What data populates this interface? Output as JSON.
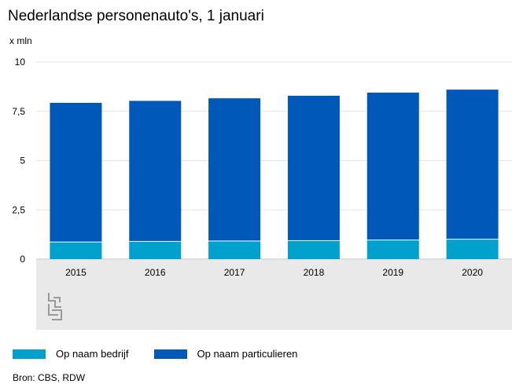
{
  "title": "Nederlandse personenauto's, 1 januari",
  "unit": "x mln",
  "source": "Bron: CBS, RDW",
  "colors": {
    "bedrijf": "#00a1cd",
    "particulieren": "#0058b8",
    "grid": "#e6e6e6",
    "band": "#e9e9e9"
  },
  "icons": {
    "logo": "cbs-logo-icon"
  },
  "chart_data": {
    "type": "bar",
    "stacked": true,
    "categories": [
      "2015",
      "2016",
      "2017",
      "2018",
      "2019",
      "2020"
    ],
    "series": [
      {
        "name": "Op naam bedrijf",
        "values": [
          0.85,
          0.88,
          0.9,
          0.92,
          0.95,
          0.99
        ]
      },
      {
        "name": "Op naam particulieren",
        "values": [
          7.08,
          7.15,
          7.26,
          7.37,
          7.5,
          7.61
        ]
      }
    ],
    "ylim": [
      0,
      10
    ],
    "yticks": [
      0,
      2.5,
      5,
      7.5,
      10
    ],
    "ytick_labels": [
      "0",
      "2,5",
      "5",
      "7,5",
      "10"
    ],
    "legend_position": "bottom",
    "grid": true
  }
}
